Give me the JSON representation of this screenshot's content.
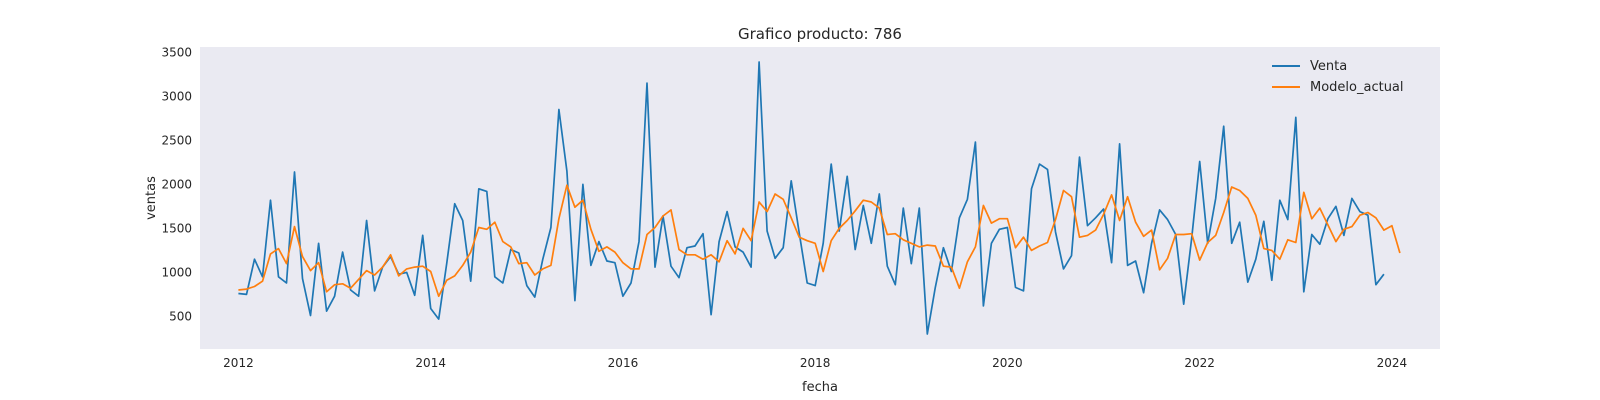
{
  "chart_data": {
    "type": "line",
    "title": "Grafico producto: 786",
    "xlabel": "fecha",
    "ylabel": "ventas",
    "x_start": "2012-01",
    "x_frequency": "monthly",
    "xlim": [
      2011.6,
      2024.5
    ],
    "ylim": [
      130,
      3560
    ],
    "x_ticks": [
      2012,
      2014,
      2016,
      2018,
      2020,
      2022,
      2024
    ],
    "y_ticks": [
      500,
      1000,
      1500,
      2000,
      2500,
      3000,
      3500
    ],
    "grid": false,
    "legend_position": "top-right",
    "background_color": "#eaeaf2",
    "series": [
      {
        "name": "Venta",
        "color": "#1f77b4",
        "values": [
          760,
          750,
          1150,
          950,
          1820,
          950,
          880,
          2140,
          930,
          510,
          1330,
          560,
          730,
          1230,
          800,
          730,
          1590,
          790,
          1060,
          1180,
          980,
          1000,
          740,
          1420,
          590,
          470,
          1100,
          1780,
          1590,
          900,
          1950,
          1920,
          950,
          880,
          1260,
          1220,
          850,
          720,
          1150,
          1510,
          2850,
          2150,
          680,
          2000,
          1080,
          1350,
          1130,
          1110,
          730,
          880,
          1350,
          3150,
          1060,
          1640,
          1070,
          940,
          1280,
          1300,
          1440,
          520,
          1350,
          1690,
          1290,
          1230,
          1060,
          3390,
          1470,
          1160,
          1280,
          2040,
          1450,
          880,
          850,
          1330,
          2230,
          1470,
          2090,
          1260,
          1760,
          1330,
          1890,
          1070,
          860,
          1730,
          1100,
          1730,
          300,
          830,
          1280,
          1010,
          1620,
          1830,
          2480,
          620,
          1330,
          1490,
          1510,
          830,
          790,
          1950,
          2230,
          2170,
          1460,
          1040,
          1190,
          2310,
          1530,
          1620,
          1720,
          1110,
          2460,
          1080,
          1130,
          770,
          1330,
          1710,
          1600,
          1430,
          640,
          1390,
          2260,
          1330,
          1840,
          2660,
          1330,
          1570,
          890,
          1150,
          1580,
          910,
          1820,
          1600,
          2760,
          780,
          1430,
          1320,
          1610,
          1750,
          1420,
          1840,
          1690,
          1650,
          860,
          980
        ]
      },
      {
        "name": "Modelo_actual",
        "color": "#ff7f0e",
        "values": [
          800,
          810,
          840,
          900,
          1210,
          1270,
          1100,
          1520,
          1180,
          1020,
          1110,
          780,
          860,
          870,
          820,
          920,
          1020,
          970,
          1060,
          1200,
          960,
          1040,
          1060,
          1070,
          1010,
          730,
          910,
          960,
          1080,
          1230,
          1510,
          1490,
          1570,
          1350,
          1290,
          1100,
          1110,
          970,
          1040,
          1080,
          1610,
          1990,
          1740,
          1820,
          1490,
          1240,
          1290,
          1230,
          1110,
          1040,
          1040,
          1430,
          1510,
          1640,
          1710,
          1260,
          1200,
          1200,
          1150,
          1200,
          1120,
          1360,
          1210,
          1500,
          1360,
          1800,
          1690,
          1890,
          1830,
          1620,
          1400,
          1360,
          1330,
          1010,
          1360,
          1500,
          1590,
          1700,
          1820,
          1800,
          1730,
          1430,
          1440,
          1370,
          1330,
          1290,
          1310,
          1300,
          1070,
          1060,
          820,
          1120,
          1290,
          1760,
          1560,
          1610,
          1610,
          1280,
          1400,
          1250,
          1300,
          1340,
          1600,
          1930,
          1860,
          1400,
          1420,
          1480,
          1660,
          1880,
          1590,
          1860,
          1570,
          1410,
          1480,
          1030,
          1160,
          1430,
          1430,
          1440,
          1140,
          1340,
          1420,
          1680,
          1970,
          1930,
          1840,
          1650,
          1270,
          1250,
          1150,
          1370,
          1340,
          1910,
          1610,
          1730,
          1540,
          1350,
          1490,
          1520,
          1650,
          1680,
          1620,
          1480,
          1530,
          1220
        ]
      }
    ]
  }
}
